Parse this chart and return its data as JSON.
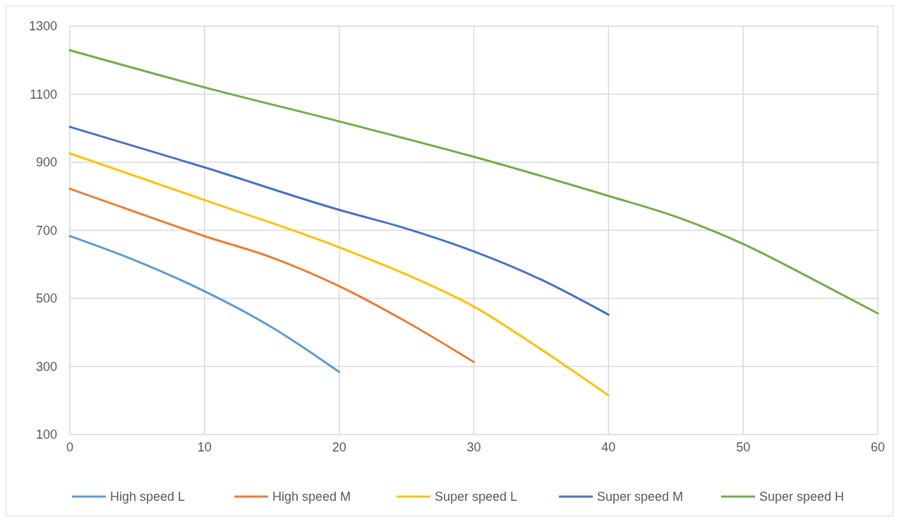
{
  "chart_data": {
    "type": "line",
    "xlim": [
      0,
      60
    ],
    "xticks": [
      0,
      10,
      20,
      30,
      40,
      50,
      60
    ],
    "ylim": [
      100,
      1300
    ],
    "yticks": [
      100,
      300,
      500,
      700,
      900,
      1100,
      1300
    ],
    "grid": true,
    "legend": "bottom",
    "line_style": "solid",
    "series": [
      {
        "name": "High speed L",
        "color": "#5b9bd5",
        "x": [
          0,
          5,
          10,
          15,
          20
        ],
        "values": [
          683,
          609,
          521,
          415,
          284
        ]
      },
      {
        "name": "High speed M",
        "color": "#ed7d31",
        "x": [
          0,
          5,
          10,
          15,
          20,
          25,
          30
        ],
        "values": [
          822,
          752,
          683,
          620,
          536,
          431,
          313
        ]
      },
      {
        "name": "Super speed L",
        "color": "#ffc000",
        "x": [
          0,
          10,
          20,
          25,
          30,
          35,
          40
        ],
        "values": [
          926,
          789,
          650,
          570,
          476,
          350,
          215
        ]
      },
      {
        "name": "Super speed M",
        "color": "#4472c4",
        "x": [
          0,
          10,
          20,
          25,
          30,
          35,
          40
        ],
        "values": [
          1004,
          885,
          760,
          705,
          638,
          555,
          452
        ]
      },
      {
        "name": "Super speed H",
        "color": "#70ad47",
        "x": [
          0,
          10,
          20,
          30,
          40,
          45,
          50,
          55,
          60
        ],
        "values": [
          1229,
          1120,
          1020,
          916,
          801,
          740,
          660,
          560,
          456
        ]
      }
    ]
  }
}
